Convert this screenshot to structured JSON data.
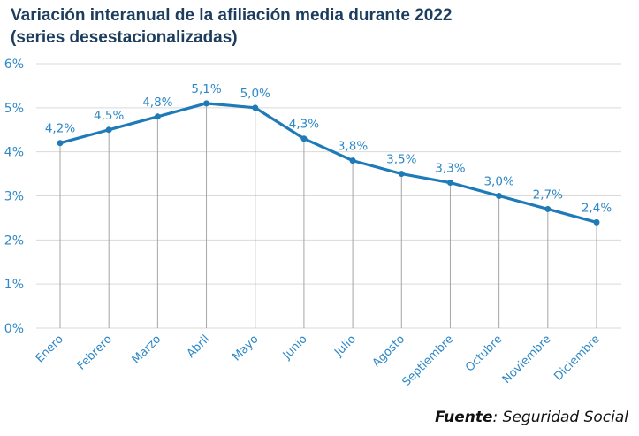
{
  "title_line1": "Variación interanual de la afiliación media durante 2022",
  "title_line2": "(series desestacionalizadas)",
  "source_label": "Fuente",
  "source_text": ": Seguridad Social",
  "colors": {
    "line": "#1f7ab8",
    "labels": "#2f88c6",
    "title": "#1c3d5e",
    "grid": "#d9d9d9",
    "droplines": "#a6a6a6"
  },
  "chart_data": {
    "type": "line",
    "title": "Variación interanual de la afiliación media durante 2022 (series desestacionalizadas)",
    "xlabel": "",
    "ylabel": "",
    "categories": [
      "Enero",
      "Febrero",
      "Marzo",
      "Abril",
      "Mayo",
      "Junio",
      "Julio",
      "Agosto",
      "Septiembre",
      "Octubre",
      "Noviembre",
      "Diciembre"
    ],
    "series": [
      {
        "name": "Variación interanual",
        "values": [
          4.2,
          4.5,
          4.8,
          5.1,
          5.0,
          4.3,
          3.8,
          3.5,
          3.3,
          3.0,
          2.7,
          2.4
        ],
        "labels": [
          "4,2%",
          "4,5%",
          "4,8%",
          "5,1%",
          "5,0%",
          "4,3%",
          "3,8%",
          "3,5%",
          "3,3%",
          "3,0%",
          "2,7%",
          "2,4%"
        ]
      }
    ],
    "ylim": [
      0,
      6
    ],
    "yticks": [
      0,
      1,
      2,
      3,
      4,
      5,
      6
    ],
    "ytick_labels": [
      "0%",
      "1%",
      "2%",
      "3%",
      "4%",
      "5%",
      "6%"
    ],
    "grid": true,
    "drop_lines": true,
    "legend": "none"
  }
}
